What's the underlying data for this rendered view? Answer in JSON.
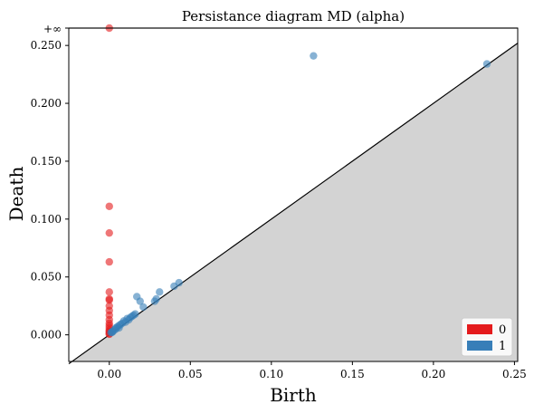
{
  "chart_data": {
    "type": "scatter",
    "title": "Persistance diagram MD (alpha)",
    "xlabel": "Birth",
    "ylabel": "Death",
    "xlim": [
      -0.025,
      0.252
    ],
    "ylim": [
      -0.023,
      0.265
    ],
    "x_ticks": [
      {
        "value": 0.0,
        "label": "0.00"
      },
      {
        "value": 0.05,
        "label": "0.05"
      },
      {
        "value": 0.1,
        "label": "0.10"
      },
      {
        "value": 0.15,
        "label": "0.15"
      },
      {
        "value": 0.2,
        "label": "0.20"
      },
      {
        "value": 0.25,
        "label": "0.25"
      }
    ],
    "y_ticks": [
      {
        "value": 0.0,
        "label": "0.000"
      },
      {
        "value": 0.05,
        "label": "0.050"
      },
      {
        "value": 0.1,
        "label": "0.100"
      },
      {
        "value": 0.15,
        "label": "0.150"
      },
      {
        "value": 0.2,
        "label": "0.200"
      },
      {
        "value": 0.25,
        "label": "0.250"
      }
    ],
    "infinity_line": {
      "value": 0.265,
      "label": "+∞"
    },
    "diagonal": true,
    "grid": false,
    "legend_position": "bottom-right",
    "series": [
      {
        "name": "0",
        "color": "#e41a1c",
        "points": [
          [
            0.0,
            0.265
          ],
          [
            0.0,
            0.111
          ],
          [
            0.0,
            0.088
          ],
          [
            0.0,
            0.063
          ],
          [
            0.0,
            0.037
          ],
          [
            0.0,
            0.031
          ],
          [
            0.0,
            0.03
          ],
          [
            0.0,
            0.025
          ],
          [
            0.0,
            0.021
          ],
          [
            0.0,
            0.017
          ],
          [
            0.0,
            0.013
          ],
          [
            0.0,
            0.01
          ],
          [
            0.0,
            0.008
          ],
          [
            0.0,
            0.006
          ],
          [
            0.0,
            0.004
          ],
          [
            0.0,
            0.003
          ],
          [
            0.0,
            0.002
          ],
          [
            0.0,
            0.001
          ],
          [
            0.0,
            0.0005
          ]
        ]
      },
      {
        "name": "1",
        "color": "#377eb8",
        "points": [
          [
            0.126,
            0.241
          ],
          [
            0.233,
            0.234
          ],
          [
            0.017,
            0.033
          ],
          [
            0.019,
            0.029
          ],
          [
            0.031,
            0.037
          ],
          [
            0.029,
            0.031
          ],
          [
            0.04,
            0.042
          ],
          [
            0.043,
            0.045
          ],
          [
            0.028,
            0.029
          ],
          [
            0.021,
            0.024
          ],
          [
            0.016,
            0.018
          ],
          [
            0.014,
            0.016
          ],
          [
            0.011,
            0.014
          ],
          [
            0.012,
            0.013
          ],
          [
            0.009,
            0.012
          ],
          [
            0.008,
            0.01
          ],
          [
            0.007,
            0.009
          ],
          [
            0.006,
            0.008
          ],
          [
            0.005,
            0.007
          ],
          [
            0.004,
            0.006
          ],
          [
            0.004,
            0.005
          ],
          [
            0.003,
            0.004
          ],
          [
            0.002,
            0.003
          ],
          [
            0.002,
            0.0025
          ],
          [
            0.001,
            0.002
          ],
          [
            0.0015,
            0.002
          ],
          [
            0.01,
            0.011
          ],
          [
            0.013,
            0.015
          ],
          [
            0.015,
            0.017
          ],
          [
            0.006,
            0.006
          ]
        ]
      }
    ]
  }
}
